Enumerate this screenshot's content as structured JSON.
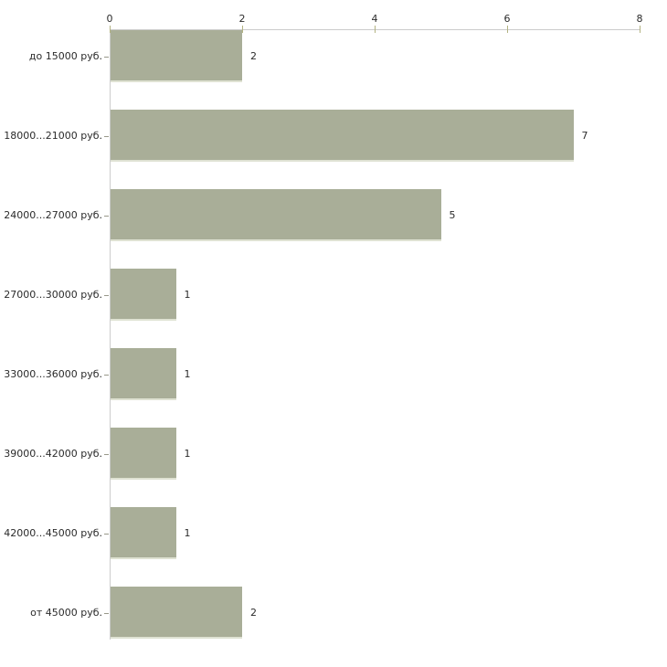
{
  "chart_data": {
    "type": "bar",
    "orientation": "horizontal",
    "title": "",
    "xlabel": "",
    "ylabel": "",
    "categories": [
      "до 15000 руб.",
      "18000...21000 руб.",
      "24000...27000 руб.",
      "27000...30000 руб.",
      "33000...36000 руб.",
      "39000...42000 руб.",
      "42000...45000 руб.",
      "от 45000 руб."
    ],
    "values": [
      2,
      7,
      5,
      1,
      1,
      1,
      1,
      2
    ],
    "value_labels": [
      "2",
      "7",
      "5",
      "1",
      "1",
      "1",
      "1",
      "2"
    ],
    "x_ticks": [
      0,
      2,
      4,
      6,
      8
    ],
    "xlim": [
      0,
      8
    ],
    "x_axis_position": "top",
    "grid": "off",
    "legend": "none",
    "colors": {
      "bar_fill": "#a9ae98",
      "bar_bottom_edge": "#dfe2d3",
      "axis_line": "#cccccc",
      "x_tick_mark": "#b3b382",
      "category_tick_mark": "#98988a",
      "text": "#2b2b2b",
      "background": "#ffffff"
    }
  }
}
